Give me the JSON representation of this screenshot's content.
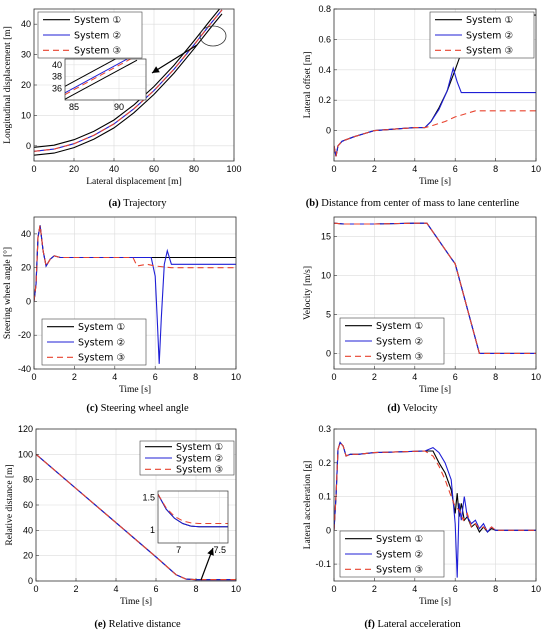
{
  "legend_labels": [
    "System ①",
    "System ②",
    "System ③"
  ],
  "series_colors": [
    "#000000",
    "#1f1fd6",
    "#e8432f"
  ],
  "series_styles": [
    "solid",
    "solid",
    "dashed"
  ],
  "captions": [
    {
      "letter": "(a)",
      "text": " Trajectory"
    },
    {
      "letter": "(b)",
      "text": " Distance from center of mass to lane centerline"
    },
    {
      "letter": "(c)",
      "text": " Steering wheel angle"
    },
    {
      "letter": "(d)",
      "text": " Velocity"
    },
    {
      "letter": "(e)",
      "text": " Relative distance"
    },
    {
      "letter": "(f)",
      "text": " Lateral acceleration"
    }
  ],
  "chart_data": [
    {
      "type": "line",
      "xlabel": "Lateral displacement [m]",
      "ylabel": "Longitudinal displacement [m]",
      "xlim": [
        0,
        100
      ],
      "ylim": [
        -5,
        45
      ],
      "xticks": [
        0,
        20,
        40,
        60,
        80,
        100
      ],
      "yticks": [
        0,
        10,
        20,
        30,
        40
      ],
      "grid": true,
      "legend": "top-left",
      "series": [
        {
          "x": [
            0,
            10,
            20,
            30,
            40,
            50,
            60,
            70,
            80,
            88,
            94
          ],
          "y": [
            -0.5,
            0.2,
            2.0,
            4.8,
            8.5,
            13.5,
            19.5,
            26.5,
            34.5,
            41.2,
            46.0
          ]
        },
        {
          "x": [
            0,
            10,
            20,
            30,
            40,
            50,
            60,
            70,
            80,
            88,
            94
          ],
          "y": [
            -1.8,
            -1.1,
            0.7,
            3.5,
            7.2,
            12.2,
            18.2,
            25.2,
            33.2,
            39.9,
            44.7
          ]
        },
        {
          "x": [
            0,
            10,
            20,
            30,
            40,
            50,
            60,
            70,
            80,
            88,
            94
          ],
          "y": [
            -1.8,
            -1.1,
            0.7,
            3.5,
            7.2,
            12.2,
            18.2,
            25.2,
            33.2,
            39.9,
            44.7
          ]
        },
        {
          "x": [
            0,
            10,
            20,
            30,
            40,
            50,
            60,
            70,
            80,
            88,
            94
          ],
          "y": [
            -3.1,
            -2.4,
            -0.6,
            2.2,
            5.9,
            10.9,
            16.9,
            23.9,
            31.9,
            38.6,
            43.4
          ]
        }
      ],
      "inset": {
        "xlim": [
          84,
          93
        ],
        "ylim": [
          34,
          41
        ],
        "xticks": [
          85,
          90
        ],
        "yticks": [
          36,
          38,
          40
        ],
        "series": [
          {
            "x": [
              83,
              92
            ],
            "y": [
              35.5,
              43.0
            ]
          },
          {
            "x": [
              83,
              92
            ],
            "y": [
              34.4,
              41.9
            ]
          },
          {
            "x": [
              83,
              92
            ],
            "y": [
              34.1,
              41.6
            ]
          },
          {
            "x": [
              83,
              92
            ],
            "y": [
              33.3,
              40.8
            ]
          }
        ]
      }
    },
    {
      "type": "line",
      "xlabel": "Time [s]",
      "ylabel": "Lateral offset [m]",
      "xlim": [
        0,
        10
      ],
      "ylim": [
        -0.2,
        0.8
      ],
      "xticks": [
        0,
        2,
        4,
        6,
        8,
        10
      ],
      "yticks": [
        0,
        0.2,
        0.4,
        0.6,
        0.8
      ],
      "grid": true,
      "legend": "top-right",
      "series": [
        {
          "x": [
            0,
            0.1,
            0.2,
            0.4,
            0.6,
            1,
            1.5,
            2,
            3,
            4,
            4.5,
            4.8,
            5.2,
            5.6,
            6,
            6.4,
            6.8,
            7.1,
            7.3,
            10
          ],
          "y": [
            -0.1,
            -0.17,
            -0.1,
            -0.07,
            -0.06,
            -0.04,
            -0.02,
            0,
            0.01,
            0.02,
            0.02,
            0.06,
            0.15,
            0.26,
            0.4,
            0.55,
            0.7,
            0.76,
            0.76,
            0.76
          ]
        },
        {
          "x": [
            0,
            0.1,
            0.2,
            0.4,
            0.6,
            1,
            1.5,
            2,
            3,
            4,
            4.5,
            4.8,
            5.2,
            5.6,
            5.9,
            6.1,
            6.3,
            6.6,
            7,
            10
          ],
          "y": [
            -0.1,
            -0.17,
            -0.1,
            -0.07,
            -0.06,
            -0.04,
            -0.02,
            0,
            0.01,
            0.02,
            0.02,
            0.06,
            0.14,
            0.26,
            0.41,
            0.32,
            0.25,
            0.25,
            0.25,
            0.25
          ]
        },
        {
          "x": [
            0,
            0.1,
            0.2,
            0.4,
            0.6,
            1,
            1.5,
            2,
            3,
            4,
            4.5,
            4.8,
            5.5,
            6,
            6.5,
            7,
            10
          ],
          "y": [
            -0.1,
            -0.17,
            -0.1,
            -0.07,
            -0.06,
            -0.04,
            -0.02,
            0,
            0.01,
            0.02,
            0.02,
            0.03,
            0.06,
            0.09,
            0.11,
            0.13,
            0.13
          ]
        }
      ]
    },
    {
      "type": "line",
      "xlabel": "Time [s]",
      "ylabel": "Steering wheel angle [°]",
      "xlim": [
        0,
        10
      ],
      "ylim": [
        -40,
        50
      ],
      "xticks": [
        0,
        2,
        4,
        6,
        8,
        10
      ],
      "yticks": [
        -40,
        -20,
        0,
        20,
        40
      ],
      "grid": true,
      "legend": "bottom-left",
      "series": [
        {
          "x": [
            0,
            0.1,
            0.2,
            0.3,
            0.45,
            0.6,
            0.8,
            1,
            1.3,
            1.6,
            2,
            4,
            6,
            10
          ],
          "y": [
            0,
            10,
            38,
            45,
            30,
            21,
            25,
            27,
            26,
            26,
            26,
            26,
            26,
            26
          ]
        },
        {
          "x": [
            0,
            0.1,
            0.2,
            0.3,
            0.45,
            0.6,
            0.8,
            1,
            1.3,
            1.6,
            2,
            4,
            5.8,
            6.0,
            6.1,
            6.2,
            6.3,
            6.45,
            6.6,
            6.8,
            7.2,
            10
          ],
          "y": [
            0,
            10,
            38,
            45,
            30,
            21,
            25,
            27,
            26,
            26,
            26,
            26,
            26,
            15,
            -10,
            -37,
            -10,
            22,
            30,
            22,
            22,
            22
          ]
        },
        {
          "x": [
            0,
            0.1,
            0.2,
            0.3,
            0.45,
            0.6,
            0.8,
            1,
            1.3,
            1.6,
            2,
            4.5,
            4.9,
            5.1,
            5.6,
            6,
            6.8,
            7.2,
            10
          ],
          "y": [
            0,
            10,
            38,
            45,
            30,
            21,
            25,
            27,
            26,
            26,
            26,
            26,
            26,
            21,
            22,
            21,
            20,
            20,
            20
          ]
        }
      ]
    },
    {
      "type": "line",
      "xlabel": "Time [s]",
      "ylabel": "Velocity [m/s]",
      "xlim": [
        0,
        10
      ],
      "ylim": [
        -2,
        17.5
      ],
      "xticks": [
        0,
        2,
        4,
        6,
        8,
        10
      ],
      "yticks": [
        0,
        5,
        10,
        15
      ],
      "grid": true,
      "legend": "bottom-left",
      "series": [
        {
          "x": [
            0,
            0.5,
            2,
            4,
            4.6,
            5.8,
            6.0,
            7.2,
            10
          ],
          "y": [
            16.7,
            16.6,
            16.6,
            16.7,
            16.7,
            12.2,
            11.5,
            0,
            0
          ]
        },
        {
          "x": [
            0,
            0.5,
            2,
            4,
            4.6,
            5.8,
            6.0,
            7.2,
            10
          ],
          "y": [
            16.7,
            16.6,
            16.6,
            16.7,
            16.7,
            12.2,
            11.5,
            0,
            0
          ]
        },
        {
          "x": [
            0,
            0.5,
            2,
            4,
            4.6,
            5.8,
            6.0,
            7.2,
            10
          ],
          "y": [
            16.7,
            16.6,
            16.6,
            16.7,
            16.7,
            12.2,
            11.5,
            0,
            0
          ]
        }
      ]
    },
    {
      "type": "line",
      "xlabel": "Time [s]",
      "ylabel": "Relative distance [m]",
      "xlim": [
        0,
        10
      ],
      "ylim": [
        0,
        120
      ],
      "xticks": [
        0,
        2,
        4,
        6,
        8,
        10
      ],
      "yticks": [
        0,
        20,
        40,
        60,
        80,
        100,
        120
      ],
      "grid": true,
      "legend": "top-right",
      "series": [
        {
          "x": [
            0,
            2,
            4,
            6,
            7,
            7.5,
            8,
            10
          ],
          "y": [
            100,
            73,
            46,
            19,
            5,
            1.5,
            1.05,
            1.05
          ]
        },
        {
          "x": [
            0,
            2,
            4,
            6,
            7,
            7.5,
            8,
            10
          ],
          "y": [
            100,
            73,
            46,
            19,
            5,
            1.5,
            1.05,
            1.05
          ]
        },
        {
          "x": [
            0,
            2,
            4,
            6,
            7,
            7.5,
            8,
            10
          ],
          "y": [
            100,
            73,
            46,
            19,
            5,
            1.5,
            1.1,
            1.1
          ]
        }
      ],
      "inset": {
        "xlim": [
          6.75,
          7.6
        ],
        "ylim": [
          0.8,
          1.6
        ],
        "xticks": [
          7,
          7.5
        ],
        "yticks": [
          1,
          1.5
        ],
        "series": [
          {
            "x": [
              6.75,
              6.85,
              6.95,
              7.05,
              7.15,
              7.25,
              7.4,
              7.6
            ],
            "y": [
              1.55,
              1.32,
              1.18,
              1.1,
              1.06,
              1.05,
              1.05,
              1.05
            ]
          },
          {
            "x": [
              6.75,
              6.85,
              6.95,
              7.05,
              7.15,
              7.25,
              7.4,
              7.6
            ],
            "y": [
              1.55,
              1.32,
              1.18,
              1.1,
              1.06,
              1.05,
              1.05,
              1.05
            ]
          },
          {
            "x": [
              6.75,
              6.85,
              6.95,
              7.05,
              7.15,
              7.25,
              7.4,
              7.6
            ],
            "y": [
              1.55,
              1.34,
              1.21,
              1.14,
              1.11,
              1.1,
              1.1,
              1.1
            ]
          }
        ]
      }
    },
    {
      "type": "line",
      "xlabel": "Time [s]",
      "ylabel": "Lateral acceleration [g]",
      "xlim": [
        0,
        10
      ],
      "ylim": [
        -0.15,
        0.3
      ],
      "xticks": [
        0,
        2,
        4,
        6,
        8,
        10
      ],
      "yticks": [
        -0.1,
        0,
        0.1,
        0.2,
        0.3
      ],
      "grid": true,
      "legend": "bottom-left",
      "series": [
        {
          "x": [
            0,
            0.1,
            0.2,
            0.3,
            0.45,
            0.6,
            0.8,
            1.2,
            2,
            4.5,
            4.9,
            5.2,
            5.5,
            5.8,
            6.0,
            6.1,
            6.2,
            6.3,
            6.45,
            6.6,
            6.8,
            7.0,
            7.2,
            7.4,
            7.6,
            7.8,
            8.0,
            8.3,
            10
          ],
          "y": [
            0,
            0.1,
            0.24,
            0.26,
            0.25,
            0.22,
            0.225,
            0.225,
            0.23,
            0.235,
            0.235,
            0.2,
            0.17,
            0.12,
            0.05,
            0.11,
            0.04,
            0.08,
            0.03,
            0.04,
            0.01,
            0.02,
            -0.005,
            0.01,
            -0.005,
            0.005,
            0,
            0,
            0
          ]
        },
        {
          "x": [
            0,
            0.1,
            0.2,
            0.3,
            0.45,
            0.6,
            0.8,
            1.2,
            2,
            4.5,
            4.9,
            5.2,
            5.5,
            5.8,
            6.0,
            6.1,
            6.2,
            6.3,
            6.45,
            6.6,
            6.8,
            7.0,
            7.2,
            7.4,
            7.6,
            7.8,
            8.0,
            8.3,
            10
          ],
          "y": [
            0,
            0.1,
            0.24,
            0.26,
            0.25,
            0.22,
            0.225,
            0.225,
            0.23,
            0.235,
            0.245,
            0.23,
            0.2,
            0.15,
            0.02,
            -0.14,
            0.08,
            0.03,
            0.1,
            0.04,
            0.02,
            0.03,
            0.005,
            0.02,
            -0.005,
            0.01,
            0,
            0,
            0
          ]
        },
        {
          "x": [
            0,
            0.1,
            0.2,
            0.3,
            0.45,
            0.6,
            0.8,
            1.2,
            2,
            4.5,
            4.9,
            5.2,
            5.5,
            5.8,
            6.0,
            6.2,
            6.4,
            6.6,
            6.8,
            7.0,
            7.2,
            7.4,
            7.6,
            7.8,
            8.0,
            8.3,
            10
          ],
          "y": [
            0,
            0.1,
            0.24,
            0.26,
            0.25,
            0.22,
            0.225,
            0.225,
            0.23,
            0.235,
            0.22,
            0.19,
            0.15,
            0.1,
            0.07,
            0.06,
            0.03,
            0.05,
            0.01,
            0.02,
            0.005,
            0.01,
            0,
            0.01,
            0,
            0,
            0
          ]
        }
      ]
    }
  ]
}
